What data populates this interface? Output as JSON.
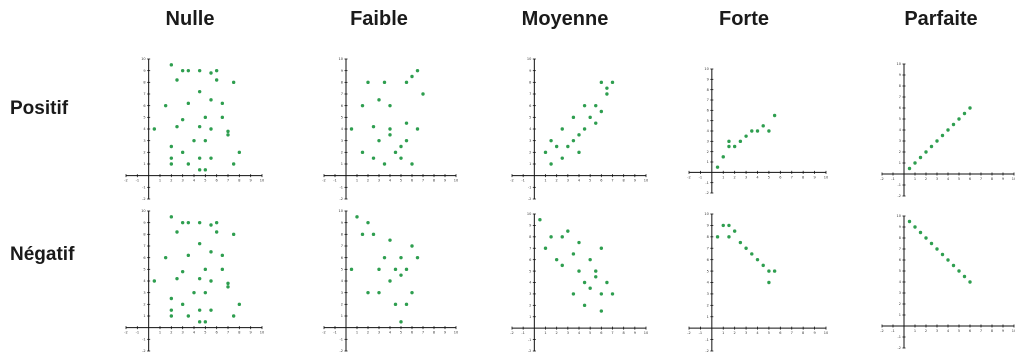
{
  "columns": [
    "Nulle",
    "Faible",
    "Moyenne",
    "Forte",
    "Parfaite"
  ],
  "rows": [
    "Positif",
    "Négatif"
  ],
  "colors": {
    "points": "#2e9e4f",
    "axes": "#111111",
    "text": "#1a1a1a"
  },
  "chart_data": [
    {
      "type": "scatter",
      "row": "Positif",
      "column": "Nulle",
      "xlim": [
        -2,
        10
      ],
      "ylim": [
        -2,
        10
      ],
      "x": [
        2.0,
        3.0,
        3.5,
        4.5,
        5.5,
        6.0,
        6.0,
        2.5,
        4.5,
        7.5,
        3.5,
        5.5,
        6.5,
        1.5,
        3.0,
        5.0,
        6.5,
        2.5,
        4.5,
        5.5,
        7.0,
        0.5,
        2.0,
        4.0,
        5.0,
        8.0,
        3.0,
        7.0,
        2.0,
        4.5,
        5.5,
        3.5,
        2.0,
        7.5,
        4.5,
        5.0
      ],
      "y": [
        9.5,
        9.0,
        9.0,
        9.0,
        8.8,
        9.0,
        8.2,
        8.2,
        7.2,
        8.0,
        6.2,
        6.5,
        6.2,
        6.0,
        4.8,
        5.0,
        5.0,
        4.2,
        4.2,
        4.0,
        3.8,
        4.0,
        2.5,
        3.0,
        3.0,
        2.0,
        2.0,
        3.5,
        1.5,
        1.5,
        1.5,
        1.0,
        1.0,
        1.0,
        0.5,
        0.5
      ]
    },
    {
      "type": "scatter",
      "row": "Positif",
      "column": "Faible",
      "xlim": [
        -2,
        10
      ],
      "ylim": [
        -2,
        10
      ],
      "x": [
        2.0,
        6.0,
        6.5,
        5.5,
        3.5,
        7.0,
        1.5,
        3.0,
        4.0,
        0.5,
        2.5,
        4.0,
        5.5,
        6.5,
        3.0,
        5.0,
        5.5,
        1.5,
        4.5,
        2.5,
        3.5,
        6.0,
        5.0,
        4.0
      ],
      "y": [
        8.0,
        8.5,
        9.0,
        8.0,
        8.0,
        7.0,
        6.0,
        6.5,
        6.0,
        4.0,
        4.2,
        4.0,
        4.5,
        4.0,
        3.0,
        2.5,
        3.0,
        2.0,
        2.0,
        1.5,
        1.0,
        1.0,
        1.5,
        3.5
      ]
    },
    {
      "type": "scatter",
      "row": "Positif",
      "column": "Moyenne",
      "xlim": [
        -2,
        10
      ],
      "ylim": [
        -2,
        10
      ],
      "x": [
        6.0,
        6.5,
        7.0,
        6.5,
        5.5,
        4.5,
        3.5,
        5.0,
        6.0,
        2.5,
        4.5,
        4.0,
        5.5,
        3.5,
        1.5,
        3.0,
        4.0,
        2.0,
        2.5,
        1.0,
        1.5
      ],
      "y": [
        8.0,
        7.5,
        8.0,
        7.0,
        6.0,
        6.0,
        5.0,
        5.0,
        5.5,
        4.0,
        4.0,
        3.5,
        4.5,
        3.0,
        3.0,
        2.5,
        2.0,
        2.5,
        1.5,
        2.0,
        1.0
      ]
    },
    {
      "type": "scatter",
      "row": "Positif",
      "column": "Forte",
      "xlim": [
        -2,
        10
      ],
      "ylim": [
        -2,
        10
      ],
      "x": [
        0.5,
        1.0,
        1.5,
        1.5,
        2.0,
        2.5,
        3.0,
        3.5,
        4.0,
        4.5,
        5.0,
        5.5
      ],
      "y": [
        0.5,
        1.5,
        2.5,
        3.0,
        2.5,
        3.0,
        3.5,
        4.0,
        4.0,
        4.5,
        4.0,
        5.5
      ]
    },
    {
      "type": "scatter",
      "row": "Positif",
      "column": "Parfaite",
      "xlim": [
        -2,
        10
      ],
      "ylim": [
        -2,
        10
      ],
      "x": [
        0.5,
        1.0,
        1.5,
        2.0,
        2.5,
        3.0,
        3.5,
        4.0,
        4.5,
        5.0,
        5.5,
        6.0
      ],
      "y": [
        0.5,
        1.0,
        1.5,
        2.0,
        2.5,
        3.0,
        3.5,
        4.0,
        4.5,
        5.0,
        5.5,
        6.0
      ]
    },
    {
      "type": "scatter",
      "row": "Négatif",
      "column": "Nulle",
      "xlim": [
        -2,
        10
      ],
      "ylim": [
        -2,
        10
      ],
      "x": [
        2.0,
        3.0,
        3.5,
        4.5,
        5.5,
        6.0,
        6.0,
        2.5,
        4.5,
        7.5,
        3.5,
        5.5,
        6.5,
        1.5,
        3.0,
        5.0,
        6.5,
        2.5,
        4.5,
        5.5,
        7.0,
        0.5,
        2.0,
        4.0,
        5.0,
        8.0,
        3.0,
        7.0,
        2.0,
        4.5,
        5.5,
        3.5,
        2.0,
        7.5,
        4.5,
        5.0
      ],
      "y": [
        9.5,
        9.0,
        9.0,
        9.0,
        8.8,
        9.0,
        8.2,
        8.2,
        7.2,
        8.0,
        6.2,
        6.5,
        6.2,
        6.0,
        4.8,
        5.0,
        5.0,
        4.2,
        4.2,
        4.0,
        3.8,
        4.0,
        2.5,
        3.0,
        3.0,
        2.0,
        2.0,
        3.5,
        1.5,
        1.5,
        1.5,
        1.0,
        1.0,
        1.0,
        0.5,
        0.5
      ]
    },
    {
      "type": "scatter",
      "row": "Négatif",
      "column": "Faible",
      "xlim": [
        -2,
        10
      ],
      "ylim": [
        -2,
        10
      ],
      "x": [
        1.0,
        2.0,
        2.5,
        1.5,
        4.0,
        3.5,
        5.0,
        6.0,
        3.0,
        4.5,
        5.5,
        6.5,
        0.5,
        4.0,
        5.0,
        2.0,
        3.0,
        6.0,
        4.5,
        5.5,
        5.0
      ],
      "y": [
        9.5,
        9.0,
        8.0,
        8.0,
        7.5,
        6.0,
        6.0,
        7.0,
        5.0,
        5.0,
        5.0,
        6.0,
        5.0,
        4.0,
        4.5,
        3.0,
        3.0,
        3.0,
        2.0,
        2.0,
        0.5
      ]
    },
    {
      "type": "scatter",
      "row": "Négatif",
      "column": "Moyenne",
      "xlim": [
        -2,
        10
      ],
      "ylim": [
        -2,
        10
      ],
      "x": [
        0.5,
        1.5,
        2.5,
        3.0,
        1.0,
        2.0,
        4.0,
        3.5,
        5.0,
        6.0,
        2.5,
        4.0,
        5.5,
        4.5,
        5.5,
        6.5,
        3.5,
        5.0,
        6.0,
        7.0,
        4.5,
        6.0
      ],
      "y": [
        9.5,
        8.0,
        8.0,
        8.5,
        7.0,
        6.0,
        7.5,
        6.5,
        6.0,
        7.0,
        5.5,
        5.0,
        5.0,
        4.0,
        4.5,
        4.0,
        3.0,
        3.5,
        3.0,
        3.0,
        2.0,
        1.5
      ]
    },
    {
      "type": "scatter",
      "row": "Négatif",
      "column": "Forte",
      "xlim": [
        -2,
        10
      ],
      "ylim": [
        -2,
        10
      ],
      "x": [
        1.0,
        0.5,
        1.5,
        2.0,
        1.5,
        2.5,
        3.0,
        3.5,
        4.0,
        4.5,
        5.0,
        5.5,
        5.0
      ],
      "y": [
        9.0,
        8.0,
        8.0,
        8.5,
        9.0,
        7.5,
        7.0,
        6.5,
        6.0,
        5.5,
        5.0,
        5.0,
        4.0
      ]
    },
    {
      "type": "scatter",
      "row": "Négatif",
      "column": "Parfaite",
      "xlim": [
        -2,
        10
      ],
      "ylim": [
        -2,
        10
      ],
      "x": [
        0.5,
        1.0,
        1.5,
        2.0,
        2.5,
        3.0,
        3.5,
        4.0,
        4.5,
        5.0,
        5.5,
        6.0
      ],
      "y": [
        9.5,
        9.0,
        8.5,
        8.0,
        7.5,
        7.0,
        6.5,
        6.0,
        5.5,
        5.0,
        4.5,
        4.0
      ]
    }
  ]
}
